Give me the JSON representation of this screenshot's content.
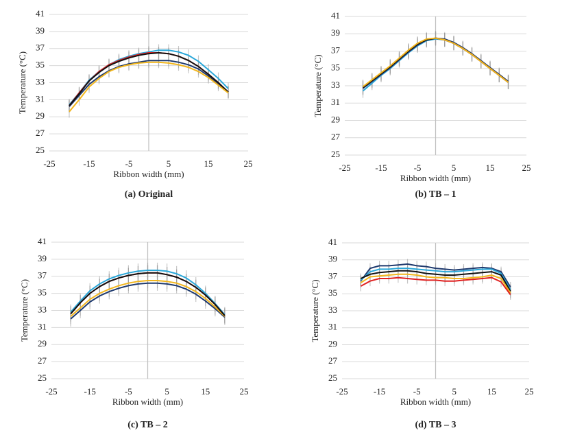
{
  "chart_data": [
    {
      "type": "line",
      "caption": "(a) Original",
      "x_label": "Ribbon width (mm)",
      "y_label": "Temperature (°C)",
      "x": [
        -20,
        -17.5,
        -15,
        -12.5,
        -10,
        -7.5,
        -5,
        -2.5,
        0,
        2.5,
        5,
        7.5,
        10,
        12.5,
        15,
        17.5,
        20
      ],
      "xlim": [
        -25,
        25
      ],
      "xticks": [
        -25,
        -15,
        -5,
        5,
        15,
        25
      ],
      "ylim": [
        25,
        41
      ],
      "yticks": [
        25,
        27,
        29,
        31,
        33,
        35,
        37,
        39,
        41
      ],
      "grid": true,
      "series": [
        {
          "color": "#1f3a6e",
          "error": 0.7,
          "values": [
            30.2,
            31.5,
            32.8,
            33.7,
            34.4,
            34.9,
            35.2,
            35.4,
            35.6,
            35.6,
            35.6,
            35.4,
            35.1,
            34.6,
            33.8,
            32.9,
            31.9
          ]
        },
        {
          "color": "#2aa7d9",
          "error": 0.7,
          "values": [
            30.4,
            31.8,
            33.3,
            34.3,
            35.1,
            35.7,
            36.1,
            36.4,
            36.6,
            36.8,
            36.8,
            36.6,
            36.2,
            35.5,
            34.5,
            33.5,
            32.3
          ]
        },
        {
          "color": "#e02020",
          "error": 0.7,
          "values": [
            30.3,
            31.8,
            33.2,
            34.3,
            35.1,
            35.6,
            36.0,
            36.3,
            36.5,
            36.5,
            36.4,
            36.1,
            35.6,
            34.9,
            34.0,
            33.0,
            31.9
          ]
        },
        {
          "color": "#111111",
          "error": 0.7,
          "values": [
            30.3,
            31.7,
            33.2,
            34.2,
            35.0,
            35.5,
            35.9,
            36.2,
            36.4,
            36.5,
            36.4,
            36.1,
            35.6,
            34.9,
            34.0,
            33.0,
            31.9
          ]
        },
        {
          "color": "#f2b61c",
          "error": 0.7,
          "values": [
            29.6,
            31.0,
            32.5,
            33.5,
            34.3,
            34.8,
            35.1,
            35.3,
            35.4,
            35.4,
            35.3,
            35.1,
            34.8,
            34.3,
            33.6,
            32.7,
            31.8
          ]
        }
      ]
    },
    {
      "type": "line",
      "caption": "(b) TB – 1",
      "x_label": "Ribbon width (mm)",
      "y_label": "Temperature (°C)",
      "x": [
        -20,
        -17.5,
        -15,
        -12.5,
        -10,
        -7.5,
        -5,
        -2.5,
        0,
        2.5,
        5,
        7.5,
        10,
        12.5,
        15,
        17.5,
        20
      ],
      "xlim": [
        -25,
        25
      ],
      "xticks": [
        -25,
        -15,
        -5,
        5,
        15,
        25
      ],
      "ylim": [
        25,
        41
      ],
      "yticks": [
        25,
        27,
        29,
        31,
        33,
        35,
        37,
        39,
        41
      ],
      "grid": true,
      "series": [
        {
          "color": "#2aa7d9",
          "error": 0.8,
          "values": [
            32.4,
            33.3,
            34.2,
            35.0,
            35.9,
            36.8,
            37.6,
            38.2,
            38.4,
            38.3,
            37.9,
            37.3,
            36.6,
            35.8,
            35.0,
            34.2,
            33.4
          ]
        },
        {
          "color": "#1f3a6e",
          "error": 0.8,
          "values": [
            32.7,
            33.5,
            34.3,
            35.1,
            36.0,
            36.9,
            37.7,
            38.3,
            38.5,
            38.4,
            38.0,
            37.4,
            36.7,
            35.9,
            35.1,
            34.3,
            33.5
          ]
        },
        {
          "color": "#e02020",
          "error": 0.8,
          "values": [
            32.8,
            33.6,
            34.4,
            35.2,
            36.1,
            37.0,
            37.8,
            38.3,
            38.5,
            38.3,
            37.9,
            37.3,
            36.6,
            35.8,
            35.0,
            34.2,
            33.4
          ]
        },
        {
          "color": "#111111",
          "error": 0.8,
          "values": [
            32.8,
            33.6,
            34.4,
            35.2,
            36.1,
            37.0,
            37.8,
            38.3,
            38.5,
            38.3,
            37.9,
            37.3,
            36.6,
            35.8,
            35.0,
            34.2,
            33.4
          ]
        },
        {
          "color": "#f2b61c",
          "error": 0.8,
          "values": [
            32.9,
            33.7,
            34.5,
            35.3,
            36.2,
            37.1,
            37.9,
            38.4,
            38.5,
            38.3,
            37.9,
            37.3,
            36.6,
            35.8,
            35.0,
            34.2,
            33.4
          ]
        }
      ]
    },
    {
      "type": "line",
      "caption": "(c) TB – 2",
      "x_label": "Ribbon width (mm)",
      "y_label": "Temperature (°C)",
      "x": [
        -20,
        -17.5,
        -15,
        -12.5,
        -10,
        -7.5,
        -5,
        -2.5,
        0,
        2.5,
        5,
        7.5,
        10,
        12.5,
        15,
        17.5,
        20
      ],
      "xlim": [
        -25,
        25
      ],
      "xticks": [
        -25,
        -15,
        -5,
        5,
        15,
        25
      ],
      "ylim": [
        25,
        41
      ],
      "yticks": [
        25,
        27,
        29,
        31,
        33,
        35,
        37,
        39,
        41
      ],
      "grid": true,
      "series": [
        {
          "color": "#1f3a6e",
          "error": 0.9,
          "values": [
            32.0,
            33.0,
            34.0,
            34.7,
            35.2,
            35.6,
            35.9,
            36.1,
            36.2,
            36.2,
            36.1,
            35.9,
            35.5,
            34.9,
            34.1,
            33.2,
            32.2
          ]
        },
        {
          "color": "#2aa7d9",
          "error": 0.9,
          "values": [
            32.8,
            34.1,
            35.3,
            36.1,
            36.7,
            37.1,
            37.4,
            37.6,
            37.7,
            37.7,
            37.6,
            37.3,
            36.8,
            36.0,
            35.0,
            33.8,
            32.5
          ]
        },
        {
          "color": "#f2b61c",
          "error": 0.9,
          "values": [
            32.3,
            33.3,
            34.3,
            35.0,
            35.5,
            35.9,
            36.2,
            36.4,
            36.5,
            36.5,
            36.4,
            36.2,
            35.8,
            35.2,
            34.4,
            33.4,
            32.3
          ]
        },
        {
          "color": "#e02020",
          "error": 0.9,
          "values": [
            32.6,
            33.9,
            35.0,
            35.8,
            36.4,
            36.8,
            37.1,
            37.3,
            37.4,
            37.4,
            37.2,
            36.9,
            36.4,
            35.7,
            34.8,
            33.7,
            32.4
          ]
        },
        {
          "color": "#111111",
          "error": 0.9,
          "values": [
            32.6,
            33.9,
            35.0,
            35.8,
            36.4,
            36.8,
            37.1,
            37.3,
            37.4,
            37.4,
            37.2,
            36.9,
            36.4,
            35.7,
            34.8,
            33.7,
            32.4
          ]
        }
      ]
    },
    {
      "type": "line",
      "caption": "(d) TB – 3",
      "x_label": "Ribbon width (mm)",
      "y_label": "Temperature (°C)",
      "x": [
        -20,
        -17.5,
        -15,
        -12.5,
        -10,
        -7.5,
        -5,
        -2.5,
        0,
        2.5,
        5,
        7.5,
        10,
        12.5,
        15,
        17.5,
        20
      ],
      "xlim": [
        -25,
        25
      ],
      "xticks": [
        -25,
        -15,
        -5,
        5,
        15,
        25
      ],
      "ylim": [
        25,
        41
      ],
      "yticks": [
        25,
        27,
        29,
        31,
        33,
        35,
        37,
        39,
        41
      ],
      "grid": true,
      "series": [
        {
          "color": "#1f3a6e",
          "error": 0.6,
          "values": [
            36.5,
            38.0,
            38.3,
            38.3,
            38.4,
            38.5,
            38.3,
            38.2,
            38.0,
            37.9,
            37.8,
            37.9,
            38.0,
            38.1,
            38.0,
            37.6,
            35.8
          ]
        },
        {
          "color": "#2aa7d9",
          "error": 0.6,
          "values": [
            36.6,
            37.6,
            37.9,
            37.9,
            38.0,
            38.0,
            37.9,
            37.8,
            37.7,
            37.6,
            37.6,
            37.7,
            37.8,
            37.9,
            37.9,
            37.4,
            35.5
          ]
        },
        {
          "color": "#111111",
          "error": 0.6,
          "values": [
            36.8,
            37.3,
            37.5,
            37.6,
            37.7,
            37.7,
            37.6,
            37.4,
            37.3,
            37.2,
            37.2,
            37.3,
            37.4,
            37.5,
            37.6,
            37.2,
            35.3
          ]
        },
        {
          "color": "#f2b61c",
          "error": 0.6,
          "values": [
            36.3,
            37.0,
            37.1,
            37.2,
            37.3,
            37.3,
            37.2,
            37.0,
            36.9,
            36.9,
            36.8,
            36.8,
            36.9,
            37.0,
            37.2,
            36.8,
            35.1
          ]
        },
        {
          "color": "#e02020",
          "error": 0.6,
          "values": [
            35.9,
            36.5,
            36.8,
            36.8,
            36.9,
            36.8,
            36.7,
            36.6,
            36.6,
            36.5,
            36.5,
            36.6,
            36.7,
            36.8,
            36.9,
            36.4,
            34.9
          ]
        }
      ]
    }
  ]
}
